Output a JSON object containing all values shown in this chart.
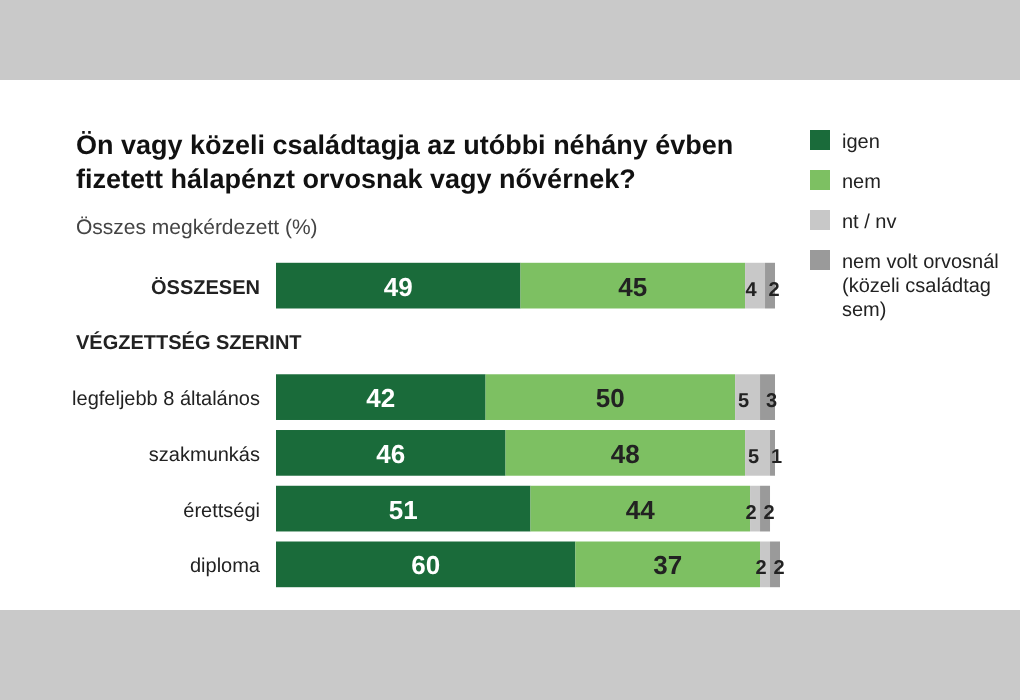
{
  "chart_data": {
    "type": "bar",
    "orientation": "horizontal",
    "stacked": true,
    "data_labels": true,
    "legend": "right",
    "title": "Ön vagy közeli családtagja az utóbbi néhány évben fizetett hálapénzt orvosnak vagy nővérnek?",
    "subtitle": "Összes megkérdezett (%)",
    "annotations": [
      "VÉGZETTSÉG SZERINT"
    ],
    "categories": [
      "ÖSSZESEN",
      null,
      "legfeljebb 8 általános",
      "szakmunkás",
      "érettségi",
      "diploma"
    ],
    "series": [
      {
        "name": "igen",
        "color": "#1a6b3a",
        "values": [
          49,
          null,
          42,
          46,
          51,
          60
        ]
      },
      {
        "name": "nem",
        "color": "#7dc062",
        "values": [
          45,
          null,
          50,
          48,
          44,
          37
        ]
      },
      {
        "name": "nt / nv",
        "color": "#c8c8c8",
        "values": [
          4,
          null,
          5,
          5,
          2,
          2
        ]
      },
      {
        "name": "nem volt orvosnál (közeli családtag sem)",
        "color": "#9a9a9a",
        "values": [
          2,
          null,
          3,
          1,
          2,
          2
        ]
      }
    ]
  }
}
